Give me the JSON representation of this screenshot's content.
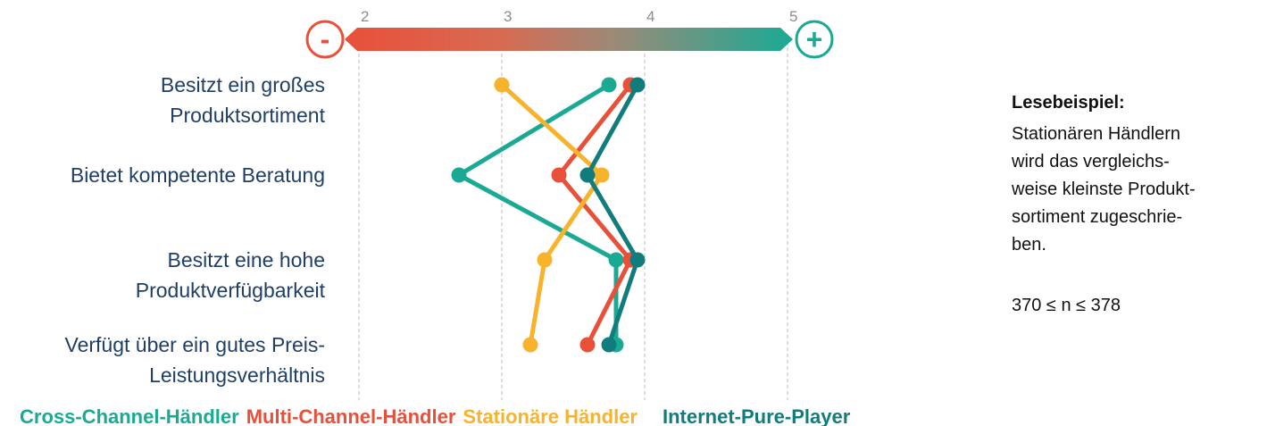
{
  "chart_data": {
    "type": "line",
    "scale_min_symbol": "-",
    "scale_max_symbol": "+",
    "x_ticks": [
      "2",
      "3",
      "4",
      "5"
    ],
    "xlim": [
      2,
      5
    ],
    "categories": [
      [
        "Besitzt ein großes",
        "Produktsortiment"
      ],
      [
        "Bietet kompetente Beratung"
      ],
      [
        "Besitzt eine hohe",
        "Produktverfügbarkeit"
      ],
      [
        "Verfügt über ein gutes Preis-",
        "Leistungsverhältnis"
      ]
    ],
    "series": [
      {
        "name": "Cross-Channel-Händler",
        "color": "#1aaa94",
        "values": [
          3.75,
          2.7,
          3.8,
          3.8
        ]
      },
      {
        "name": "Multi-Channel-Händler",
        "color": "#e8503a",
        "values": [
          3.9,
          3.4,
          3.9,
          3.6
        ]
      },
      {
        "name": "Stationäre Händler",
        "color": "#f7b32b",
        "values": [
          3.0,
          3.7,
          3.3,
          3.2
        ]
      },
      {
        "name": "Internet-Pure-Player",
        "color": "#107c7c",
        "values": [
          3.95,
          3.6,
          3.95,
          3.75
        ]
      }
    ],
    "grid": true
  },
  "reading_example": {
    "title": "Lesebeispiel:",
    "lines": [
      "Stationären Händlern",
      "wird das vergleichs-",
      "weise kleinste Produkt-",
      "sortiment zugeschrie-",
      "ben."
    ],
    "sample_size": "370 ≤ n ≤ 378"
  }
}
